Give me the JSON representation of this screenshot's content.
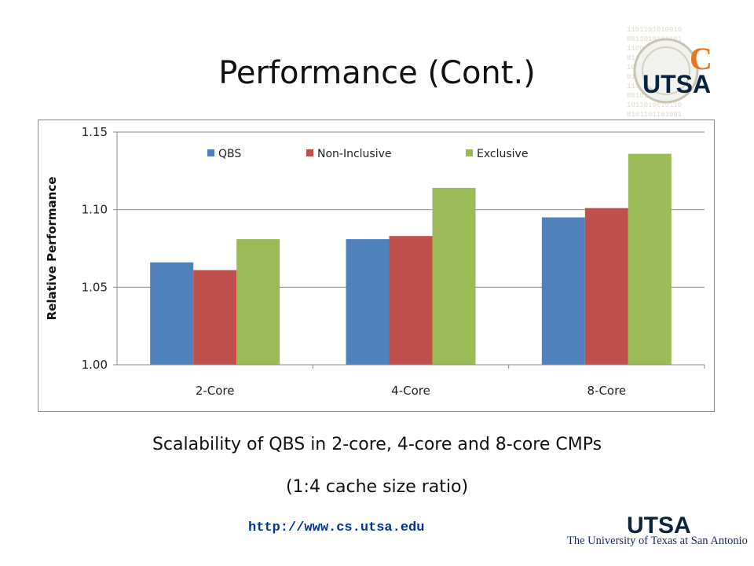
{
  "slide": {
    "title": "Performance (Cont.)",
    "caption_line1": "Scalability of QBS in 2-core, 4-core and 8-core CMPs",
    "caption_line2": "(1:4 cache size ratio)",
    "url": "http://www.cs.utsa.edu",
    "university_name": "The University of Texas at San Antonio",
    "logo_text": "UTSA",
    "logo_bottom_text": "UTSA"
  },
  "chart_data": {
    "type": "bar",
    "categories": [
      "2-Core",
      "4-Core",
      "8-Core"
    ],
    "series": [
      {
        "name": "QBS",
        "values": [
          1.066,
          1.081,
          1.095
        ],
        "color": "#4f81bd"
      },
      {
        "name": "Non-Inclusive",
        "values": [
          1.061,
          1.083,
          1.101
        ],
        "color": "#c0504d"
      },
      {
        "name": "Exclusive",
        "values": [
          1.081,
          1.114,
          1.136
        ],
        "color": "#9bbb59"
      }
    ],
    "title": "",
    "xlabel": "",
    "ylabel": "Relative Performance",
    "ylim": [
      1.0,
      1.15
    ],
    "yticks": [
      1.0,
      1.05,
      1.1,
      1.15
    ],
    "ytick_labels": [
      "1.00",
      "1.05",
      "1.10",
      "1.15"
    ],
    "grid": true,
    "legend_position": "top"
  }
}
